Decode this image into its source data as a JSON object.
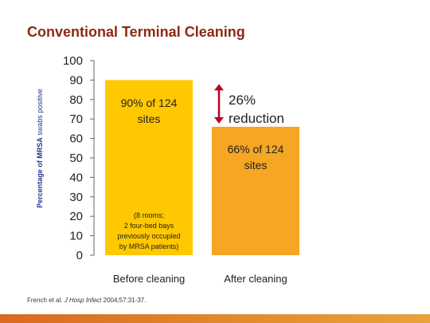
{
  "slide": {
    "title": "Conventional Terminal Cleaning",
    "citation_authors": "French et al.",
    "citation_journal": "J Hosp Infect",
    "citation_details": "2004;57:31-37."
  },
  "colors": {
    "title": "#8b2a12",
    "before_bar": "#ffc800",
    "after_bar": "#f5a623",
    "axis_label": "#1f3a93",
    "arrow": "#c0001d",
    "text": "#222222",
    "bottom_band": "#e08a2a"
  },
  "chart_data": {
    "type": "bar",
    "categories": [
      "Before cleaning",
      "After cleaning"
    ],
    "values": [
      90,
      66
    ],
    "ylabel_bold": "Percentage of MRSA",
    "ylabel_rest": "swabs positive",
    "ylim": [
      0,
      100
    ],
    "yticks": [
      100,
      90,
      80,
      70,
      60,
      50,
      40,
      30,
      20,
      10,
      0
    ],
    "grid": false,
    "bar_labels": [
      {
        "lines": [
          "90% of 124",
          "sites"
        ]
      },
      {
        "lines": [
          "66% of 124",
          "sites"
        ]
      }
    ],
    "note_lines": [
      "(8 rooms;",
      "2 four-bed bays",
      "previously occupied",
      "by MRSA patients)"
    ],
    "reduction_lines": [
      "26%",
      "reduction"
    ]
  }
}
